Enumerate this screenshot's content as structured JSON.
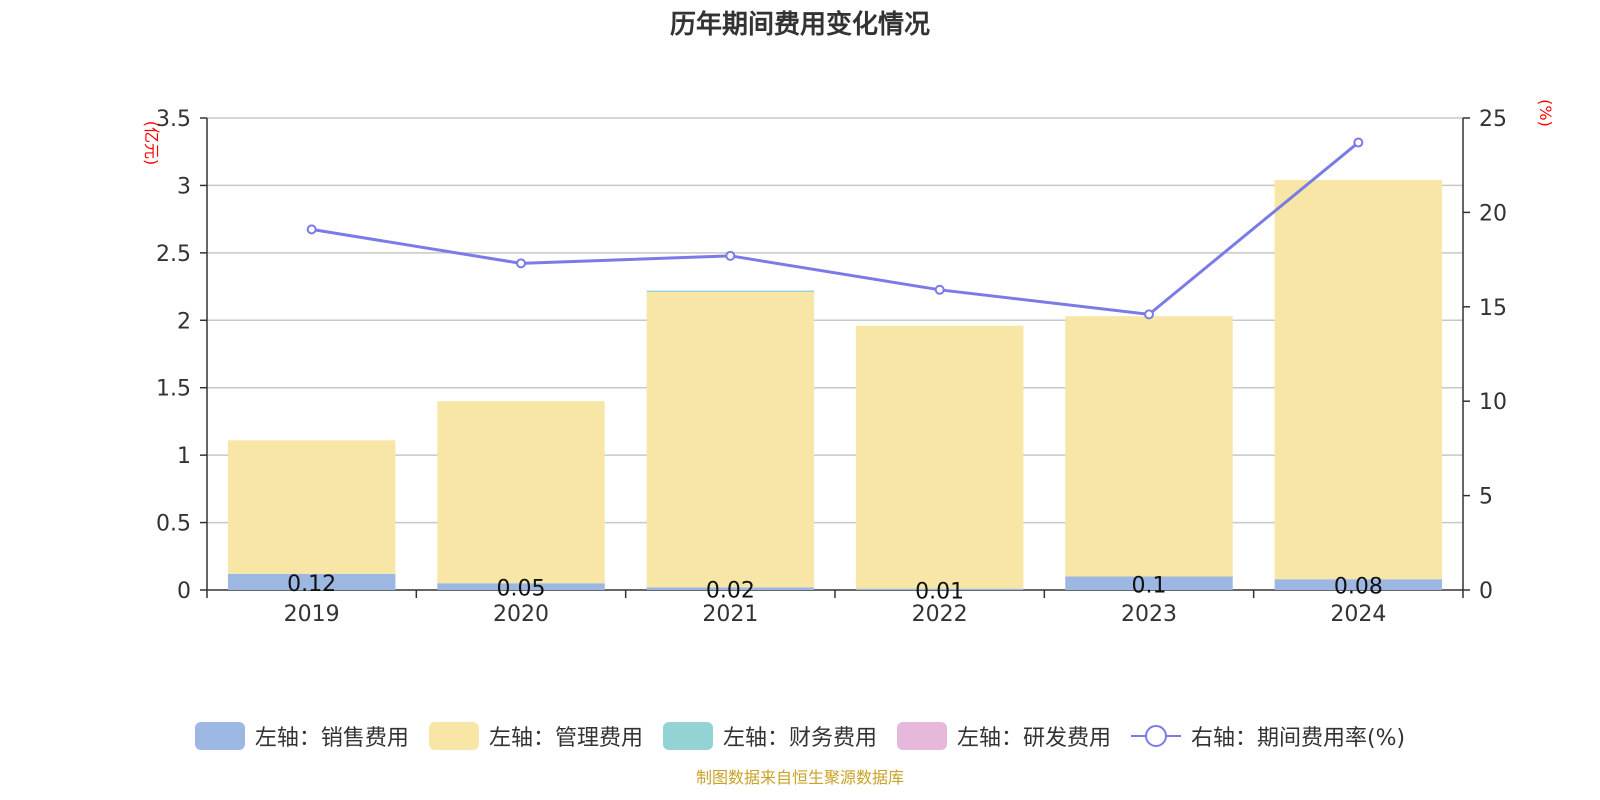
{
  "title": "历年期间费用变化情况",
  "footer": "制图数据来自恒生聚源数据库",
  "colors": {
    "sales": "#9db7e3",
    "admin": "#f7e6a6",
    "finance": "#94d3d4",
    "rnd": "#e6b8dc",
    "rate": "#7b7be8",
    "axis_unit": "#ff0000",
    "grid": "#c8c8c8"
  },
  "legend": {
    "sales": "左轴：销售费用",
    "admin": "左轴：管理费用",
    "finance": "左轴：财务费用",
    "rnd": "左轴：研发费用",
    "rate": "右轴：期间费用率(%)"
  },
  "chart_data": {
    "type": "bar",
    "title": "历年期间费用变化情况",
    "categories": [
      "2019",
      "2020",
      "2021",
      "2022",
      "2023",
      "2024"
    ],
    "left_axis": {
      "unit_label": "(亿元)",
      "ylim": [
        0,
        3.5
      ],
      "ticks": [
        0,
        0.5,
        1,
        1.5,
        2,
        2.5,
        3,
        3.5
      ],
      "tick_labels": [
        "0",
        "0.5",
        "1",
        "1.5",
        "2",
        "2.5",
        "3",
        "3.5"
      ]
    },
    "right_axis": {
      "unit_label": "(%)",
      "ylim": [
        0,
        25
      ],
      "ticks": [
        0,
        5,
        10,
        15,
        20,
        25
      ],
      "tick_labels": [
        "0",
        "5",
        "10",
        "15",
        "20",
        "25"
      ]
    },
    "grid": true,
    "legend_position": "bottom",
    "series": [
      {
        "name": "左轴：销售费用",
        "type": "bar",
        "stack": true,
        "axis": "left",
        "values": [
          0.12,
          0.05,
          0.02,
          0.01,
          0.1,
          0.08
        ],
        "data_labels": [
          "0.12",
          "0.05",
          "0.02",
          "0.01",
          "0.1",
          "0.08"
        ]
      },
      {
        "name": "左轴：管理费用",
        "type": "bar",
        "stack": true,
        "axis": "left",
        "values": [
          0.99,
          1.35,
          2.19,
          1.95,
          1.93,
          2.96
        ]
      },
      {
        "name": "左轴：财务费用",
        "type": "bar",
        "stack": true,
        "axis": "left",
        "values": [
          0,
          0,
          0.01,
          0,
          0,
          0
        ]
      },
      {
        "name": "左轴：研发费用",
        "type": "bar",
        "stack": true,
        "axis": "left",
        "values": [
          0,
          0,
          0,
          0,
          0,
          0
        ]
      },
      {
        "name": "右轴：期间费用率(%)",
        "type": "line",
        "axis": "right",
        "values": [
          19.1,
          17.3,
          17.7,
          15.9,
          14.6,
          23.7
        ]
      }
    ]
  }
}
